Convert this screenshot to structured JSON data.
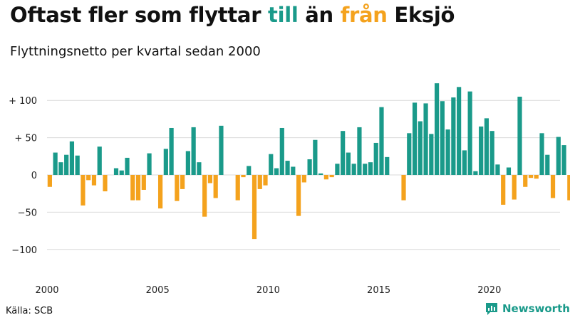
{
  "title": {
    "part1": "Oftast fler som flyttar ",
    "part2": "till",
    "part3": " än ",
    "part4": "från",
    "part5": " Eksjö"
  },
  "subtitle": "Flyttningsnetto per kvartal sedan 2000",
  "source": "Källa: SCB",
  "brand": "Newsworthy",
  "colors": {
    "positive": "#1a9a8a",
    "negative": "#f4a21d",
    "grid": "#d9d9d9"
  },
  "chart_data": {
    "type": "bar",
    "title": "Oftast fler som flyttar till än från Eksjö",
    "subtitle": "Flyttningsnetto per kvartal sedan 2000",
    "ylim": [
      -120,
      130
    ],
    "yticks": [
      {
        "value": 100,
        "label": "+ 100"
      },
      {
        "value": 50,
        "label": "+  50"
      },
      {
        "value": 0,
        "label": "0"
      },
      {
        "value": -50,
        "label": "−50"
      },
      {
        "value": -100,
        "label": "−100"
      }
    ],
    "xticks": [
      {
        "value": 2000,
        "label": "2000"
      },
      {
        "value": 2005,
        "label": "2005"
      },
      {
        "value": 2010,
        "label": "2010"
      },
      {
        "value": 2015,
        "label": "2015"
      },
      {
        "value": 2020,
        "label": "2020"
      }
    ],
    "start": "2000 Q1",
    "values": [
      -16,
      30,
      17,
      27,
      45,
      26,
      -41,
      -7,
      -14,
      38,
      -22,
      0,
      9,
      6,
      23,
      -34,
      -34,
      -20,
      29,
      0,
      -45,
      35,
      63,
      -35,
      -19,
      32,
      64,
      17,
      -56,
      -11,
      -31,
      66,
      0,
      0,
      -34,
      -3,
      12,
      -86,
      -19,
      -14,
      28,
      9,
      63,
      19,
      11,
      -55,
      -10,
      21,
      47,
      2,
      -6,
      -3,
      15,
      59,
      30,
      15,
      64,
      15,
      17,
      43,
      91,
      24,
      0,
      0,
      -34,
      56,
      97,
      72,
      96,
      55,
      123,
      99,
      61,
      104,
      118,
      33,
      112,
      5,
      65,
      76,
      59,
      14,
      -40,
      10,
      -33,
      105,
      -16,
      -4,
      -5,
      56,
      27,
      -31,
      51,
      40,
      -34,
      -13,
      30
    ]
  }
}
